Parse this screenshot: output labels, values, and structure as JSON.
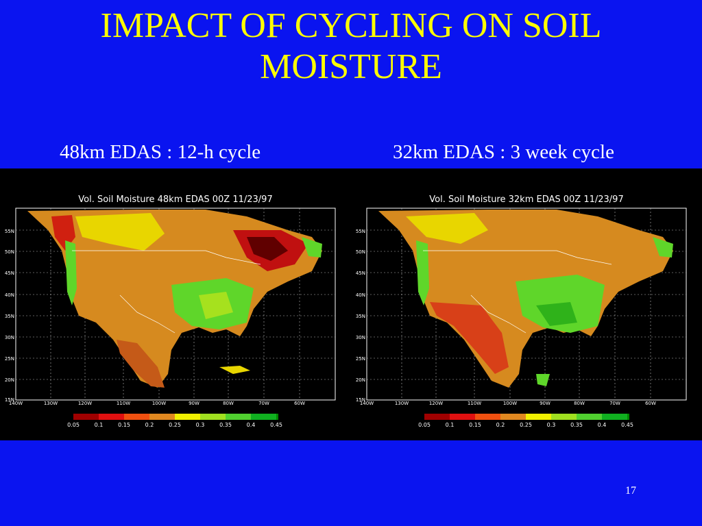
{
  "slide": {
    "title": "IMPACT OF CYCLING ON SOIL\nMOISTURE",
    "page_number": "17"
  },
  "panels": [
    {
      "caption": "48km EDAS : 12-h cycle",
      "map_title": "Vol. Soil Moisture 48km EDAS 00Z 11/23/97"
    },
    {
      "caption": "32km EDAS : 3 week cycle",
      "map_title": "Vol. Soil Moisture 32km EDAS 00Z 11/23/97"
    }
  ],
  "lat_labels": [
    "55N",
    "50N",
    "45N",
    "40N",
    "35N",
    "30N",
    "25N",
    "20N",
    "15N"
  ],
  "lon_labels": [
    "140W",
    "130W",
    "120W",
    "110W",
    "100W",
    "90W",
    "80W",
    "70W",
    "60W"
  ],
  "legend": {
    "labels": [
      "0.05",
      "0.1",
      "0.15",
      "0.2",
      "0.25",
      "0.3",
      "0.35",
      "0.4",
      "0.45"
    ],
    "colors": [
      "#a00000",
      "#e01010",
      "#f05010",
      "#e08820",
      "#e0b000",
      "#f0f000",
      "#a0e020",
      "#50d030",
      "#10b020",
      "#008800"
    ]
  },
  "colors": {
    "background": "#0a14f0",
    "title": "#ffff00",
    "ocean": "#000000"
  }
}
